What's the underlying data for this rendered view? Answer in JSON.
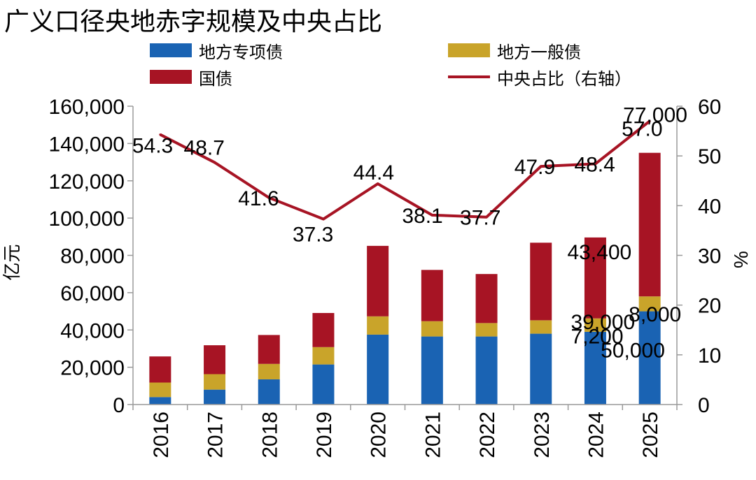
{
  "title": "广义口径央地赤字规模及中央占比",
  "legend": {
    "special": "地方专项债",
    "general": "地方一般债",
    "treasury": "国债",
    "ratio": "中央占比（右轴）"
  },
  "colors": {
    "special": "#1a63b3",
    "general": "#c9a42a",
    "treasury": "#a71424",
    "ratio": "#a71424"
  },
  "chart_data": {
    "type": "bar",
    "stacked": true,
    "title": "广义口径央地赤字规模及中央占比",
    "categories": [
      "2016",
      "2017",
      "2018",
      "2019",
      "2020",
      "2021",
      "2022",
      "2023",
      "2024",
      "2025"
    ],
    "series": [
      {
        "name": "地方专项债",
        "key": "special",
        "values": [
          4000,
          8000,
          13500,
          21500,
          37500,
          36500,
          36500,
          38000,
          39000,
          50000
        ]
      },
      {
        "name": "地方一般债",
        "key": "general",
        "values": [
          7800,
          8300,
          8300,
          9300,
          9800,
          8200,
          7200,
          7200,
          7200,
          8000
        ]
      },
      {
        "name": "国债",
        "key": "treasury",
        "values": [
          14000,
          15500,
          15500,
          18300,
          37800,
          27500,
          26300,
          41600,
          43400,
          77000
        ]
      }
    ],
    "line_series": {
      "name": "中央占比（右轴）",
      "axis": "right",
      "values": [
        54.3,
        48.7,
        41.6,
        37.3,
        44.4,
        38.1,
        37.7,
        47.9,
        48.4,
        57.0
      ],
      "labels": [
        "54.3",
        "48.7",
        "41.6",
        "37.3",
        "44.4",
        "38.1",
        "37.7",
        "47.9",
        "48.4",
        "57.0"
      ]
    },
    "bar_value_labels": [
      {
        "category": "2024",
        "series": "special",
        "text": "39,000"
      },
      {
        "category": "2024",
        "series": "general",
        "text": "7,200"
      },
      {
        "category": "2024",
        "series": "treasury",
        "text": "43,400"
      },
      {
        "category": "2025",
        "series": "special",
        "text": "50,000"
      },
      {
        "category": "2025",
        "series": "general",
        "text": "8,000"
      },
      {
        "category": "2025",
        "series": "treasury",
        "text": "77,000"
      }
    ],
    "y_left": {
      "label": "亿元",
      "ylim": [
        0,
        160000
      ],
      "ticks": [
        0,
        20000,
        40000,
        60000,
        80000,
        100000,
        120000,
        140000,
        160000
      ],
      "tick_labels": [
        "0",
        "20,000",
        "40,000",
        "60,000",
        "80,000",
        "100,000",
        "120,000",
        "140,000",
        "160,000"
      ]
    },
    "y_right": {
      "label": "%",
      "ylim": [
        0,
        60
      ],
      "ticks": [
        0,
        10,
        20,
        30,
        40,
        50,
        60
      ],
      "tick_labels": [
        "0",
        "10",
        "20",
        "30",
        "40",
        "50",
        "60"
      ]
    },
    "grid": false,
    "legend_position": "top"
  }
}
